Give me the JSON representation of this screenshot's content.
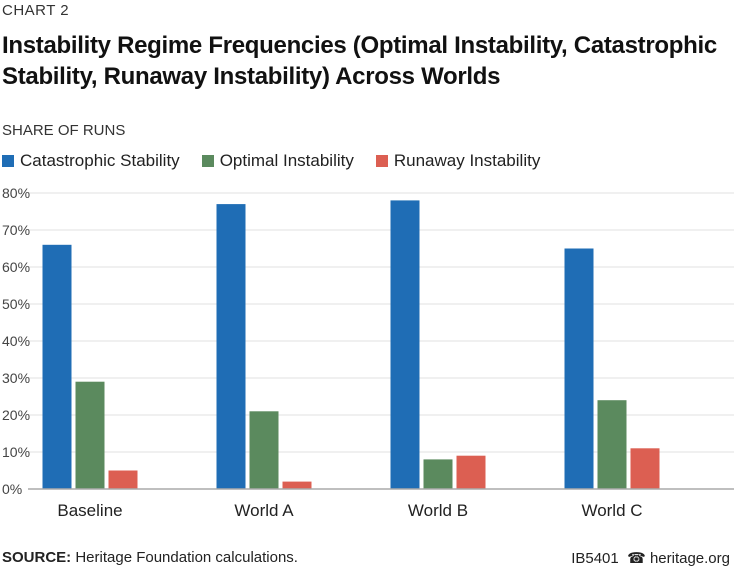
{
  "header": {
    "chart_label": "CHART 2"
  },
  "footer": {
    "source_label": "SOURCE:",
    "source_text": "Heritage Foundation calculations.",
    "report_id": "IB5401",
    "site": "heritage.org",
    "icon": "bell-icon"
  },
  "chart_data": {
    "type": "bar",
    "title": "Instability Regime Frequencies (Optimal Instability, Catastrophic Stability, Runaway Instability) Across Worlds",
    "ylabel": "SHARE OF RUNS",
    "xlabel": "",
    "categories": [
      "Baseline",
      "World A",
      "World B",
      "World C"
    ],
    "series": [
      {
        "name": "Catastrophic Stability",
        "color": "#1f6db5",
        "values": [
          66,
          77,
          78,
          65
        ]
      },
      {
        "name": "Optimal Instability",
        "color": "#5b8a5e",
        "values": [
          29,
          21,
          8,
          24
        ]
      },
      {
        "name": "Runaway Instability",
        "color": "#dc5f52",
        "values": [
          5,
          2,
          9,
          11
        ]
      }
    ],
    "ylim": [
      0,
      80
    ],
    "yticks": [
      "0%",
      "10%",
      "20%",
      "30%",
      "40%",
      "50%",
      "60%",
      "70%",
      "80%"
    ],
    "grid": true,
    "legend": "top-left"
  }
}
